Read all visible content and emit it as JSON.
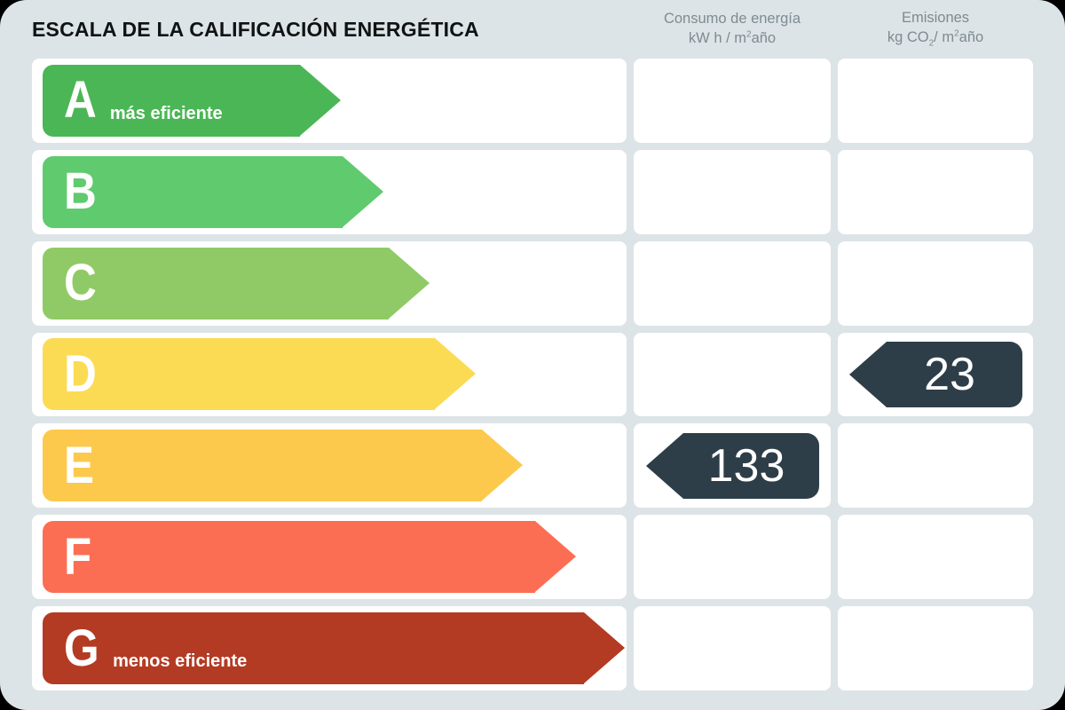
{
  "title": "ESCALA DE LA CALIFICACIÓN ENERGÉTICA",
  "columns": {
    "consumo": {
      "line1": "Consumo de energía",
      "unit_prefix": "kW h / m",
      "unit_exp": "2",
      "unit_suffix": "año"
    },
    "emisiones": {
      "line1": "Emisiones",
      "unit_prefix": "kg CO",
      "unit_sub": "2",
      "unit_mid": "/ m",
      "unit_exp": "2",
      "unit_suffix": "año"
    }
  },
  "scale": {
    "rows": [
      {
        "letter": "A",
        "label": "más eficiente",
        "color": "#4bb655"
      },
      {
        "letter": "B",
        "label": "",
        "color": "#60ca6e"
      },
      {
        "letter": "C",
        "label": "",
        "color": "#90ca66"
      },
      {
        "letter": "D",
        "label": "",
        "color": "#fcdb54"
      },
      {
        "letter": "E",
        "label": "",
        "color": "#fcc94d"
      },
      {
        "letter": "F",
        "label": "",
        "color": "#fc6e54"
      },
      {
        "letter": "G",
        "label": "menos eficiente",
        "color": "#b43b23"
      }
    ]
  },
  "values": {
    "arrow_color": "#2d3e48",
    "consumo": {
      "rating": "E",
      "value": "133"
    },
    "emisiones": {
      "rating": "D",
      "value": "23"
    }
  },
  "colors": {
    "card_background": "#dde4e7",
    "cell_background": "#ffffff",
    "header_text": "#7d8b91",
    "title_text": "#101314"
  },
  "chart_data": {
    "type": "table",
    "title": "ESCALA DE LA CALIFICACIÓN ENERGÉTICA",
    "categories": [
      "A",
      "B",
      "C",
      "D",
      "E",
      "F",
      "G"
    ],
    "category_notes": {
      "A": "más eficiente",
      "G": "menos eficiente"
    },
    "series": [
      {
        "name": "Consumo de energía kW h / m²año",
        "rating": "E",
        "value": 133,
        "values": [
          null,
          null,
          null,
          null,
          133,
          null,
          null
        ]
      },
      {
        "name": "Emisiones kg CO₂ / m²año",
        "rating": "D",
        "value": 23,
        "values": [
          null,
          null,
          null,
          23,
          null,
          null,
          null
        ]
      }
    ],
    "legend_position": "top",
    "bar_colors": [
      "#4bb655",
      "#60ca6e",
      "#90ca66",
      "#fcdb54",
      "#fcc94d",
      "#fc6e54",
      "#b43b23"
    ]
  }
}
